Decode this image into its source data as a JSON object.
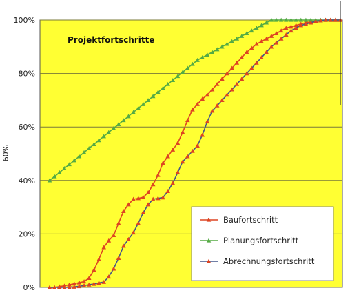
{
  "chart_data": {
    "type": "line",
    "title": "Projektfortschritte",
    "ylabel": "60%",
    "xlabel": "",
    "ylim": [
      0,
      100
    ],
    "yticks": [
      "0%",
      "20%",
      "40%",
      "60%",
      "80%",
      "100%"
    ],
    "grid": true,
    "legend_position": "bottom-right",
    "plot_background": "#FFFF33",
    "x": [
      1,
      2,
      3,
      4,
      5,
      6,
      7,
      8,
      9,
      10,
      11,
      12,
      13,
      14,
      15,
      16,
      17,
      18,
      19,
      20,
      21,
      22,
      23,
      24,
      25,
      26,
      27,
      28,
      29,
      30,
      31,
      32,
      33,
      34,
      35,
      36,
      37,
      38,
      39,
      40,
      41,
      42,
      43,
      44,
      45,
      46,
      47,
      48,
      49,
      50,
      51,
      52,
      53,
      54,
      55,
      56,
      57,
      58,
      59,
      60
    ],
    "series": [
      {
        "name": "Baufortschritt",
        "color": "#DD4422",
        "marker": "#DD4422",
        "values": [
          0,
          0,
          0.3,
          0.6,
          1,
          1.4,
          1.8,
          2.2,
          3.5,
          6.5,
          10.5,
          15,
          17.5,
          19.5,
          24,
          28.5,
          31,
          33,
          33.3,
          33.7,
          35.5,
          38.5,
          42,
          46.5,
          49,
          51.5,
          54,
          58,
          62.5,
          66.5,
          68.5,
          70.5,
          72,
          74,
          76,
          78,
          80,
          82,
          84,
          86,
          88,
          89.5,
          91,
          92,
          93,
          94,
          95,
          96,
          97,
          97.5,
          98,
          98.5,
          99,
          99.3,
          99.6,
          99.8,
          100,
          100,
          100,
          100
        ]
      },
      {
        "name": "Planungsfortschritt",
        "color": "#55AA44",
        "marker": "#55AA44",
        "values": [
          40,
          41.5,
          43,
          44.5,
          46,
          47.5,
          49,
          50.5,
          52,
          53.5,
          55,
          56.5,
          58,
          59.5,
          61,
          62.5,
          64,
          65.5,
          67,
          68.5,
          70,
          71.5,
          73,
          74.5,
          76,
          77.5,
          79,
          80.5,
          82,
          83.5,
          85,
          86,
          87,
          88,
          89,
          90,
          91,
          92,
          93,
          94,
          95,
          96,
          97,
          98,
          99,
          100,
          100,
          100,
          100,
          100,
          100,
          100,
          100,
          100,
          100,
          100,
          100,
          100,
          100,
          100
        ]
      },
      {
        "name": "Abrechnungsfortschritt",
        "color": "#445588",
        "marker": "#DD4422",
        "values": [
          0,
          0,
          0,
          0,
          0,
          0.2,
          0.4,
          0.7,
          1,
          1.3,
          1.7,
          2,
          4,
          7,
          11,
          15.5,
          18,
          20.5,
          24,
          28,
          31,
          33,
          33.3,
          33.6,
          36,
          39,
          43,
          47,
          49,
          51,
          53,
          57,
          62,
          66,
          68,
          70,
          72,
          74,
          76,
          78,
          80,
          82,
          84,
          86,
          88,
          90,
          91.5,
          93,
          94.5,
          96,
          97,
          98,
          98.5,
          99,
          99.5,
          99.8,
          100,
          100,
          100,
          100
        ]
      }
    ]
  }
}
